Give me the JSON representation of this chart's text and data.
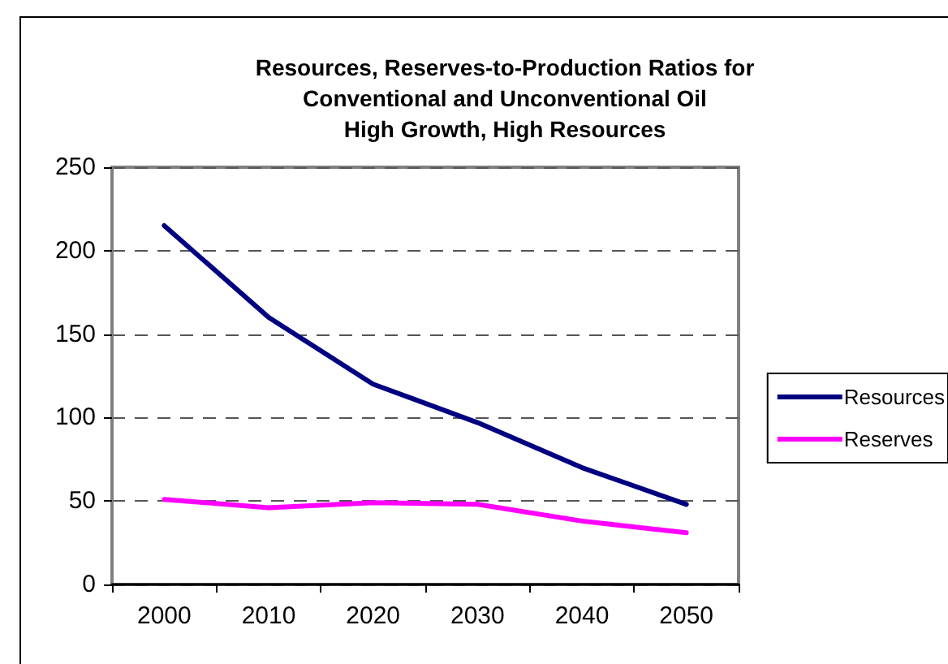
{
  "chart_data": {
    "type": "line",
    "title": "Resources, Reserves-to-Production Ratios for\nConventional and Unconventional Oil\nHigh Growth, High Resources",
    "categories": [
      "2000",
      "2010",
      "2020",
      "2030",
      "2040",
      "2050"
    ],
    "series": [
      {
        "name": "Resources",
        "color": "#000080",
        "values": [
          215,
          160,
          120,
          97,
          70,
          48
        ]
      },
      {
        "name": "Reserves",
        "color": "#ff00ff",
        "values": [
          51,
          46,
          49,
          48,
          38,
          31
        ]
      }
    ],
    "ylim": [
      0,
      250
    ],
    "yticks": [
      0,
      50,
      100,
      150,
      200,
      250
    ],
    "grid": "y",
    "legend": "right",
    "marker": "none",
    "line_style": "solid"
  }
}
